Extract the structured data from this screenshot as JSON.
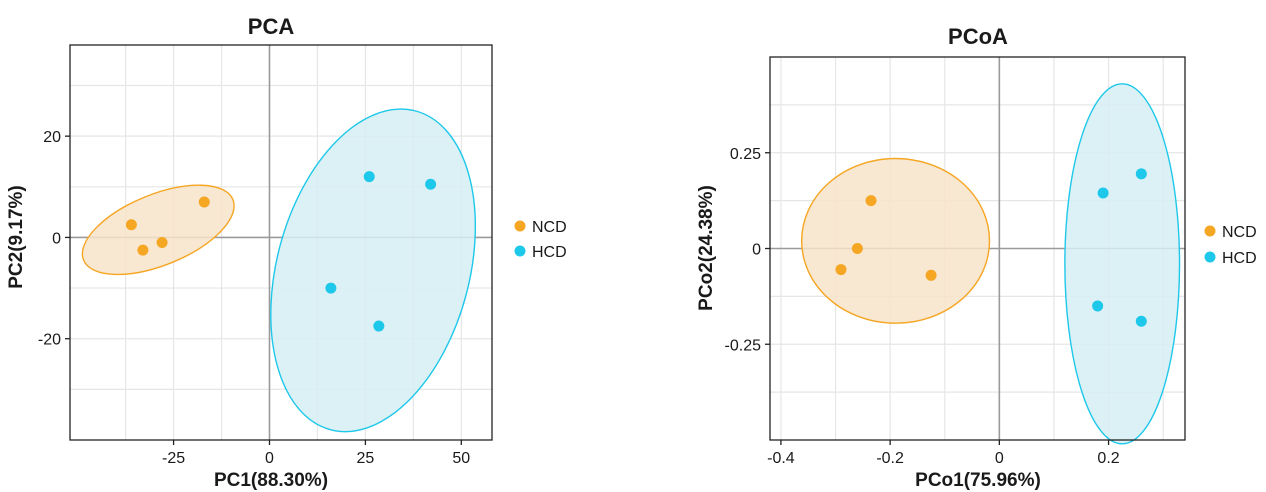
{
  "colors": {
    "NCD": "#f5a623",
    "HCD": "#1ec8ea",
    "NCD_fill": "#f7e3c9",
    "HCD_fill": "#d6eff3",
    "grid": "#e6e6e6",
    "zero_line": "#9a9a9a",
    "frame": "#222222"
  },
  "chart_data": [
    {
      "type": "scatter",
      "title": "PCA",
      "xlabel": "PC1(88.30%)",
      "ylabel": "PC2(9.17%)",
      "xlim": [
        -52,
        58
      ],
      "ylim": [
        -40,
        38
      ],
      "xticks": [
        -25,
        0,
        25,
        50
      ],
      "xtick_labels": [
        "-25",
        "0",
        "25",
        "50"
      ],
      "yticks": [
        -20,
        0,
        20
      ],
      "ytick_labels": [
        "-20",
        "0",
        "20"
      ],
      "x_minor_grid": [
        -37.5,
        -12.5,
        12.5,
        37.5
      ],
      "y_minor_grid": [
        -30,
        -10,
        10,
        30
      ],
      "grid": true,
      "legend": "right",
      "series": [
        {
          "name": "NCD",
          "points": [
            [
              -36,
              2.5
            ],
            [
              -33,
              -2.5
            ],
            [
              -28,
              -1
            ],
            [
              -17,
              7
            ]
          ]
        },
        {
          "name": "HCD",
          "points": [
            [
              26,
              12
            ],
            [
              42,
              10.5
            ],
            [
              16,
              -10
            ],
            [
              28.5,
              -17.5
            ]
          ]
        }
      ],
      "ellipses": [
        {
          "series": "NCD",
          "cx": -29,
          "cy": 1.5,
          "rx": 21,
          "ry": 7,
          "angle_deg": 22
        },
        {
          "series": "HCD",
          "cx": 27,
          "cy": -6.5,
          "rx": 43,
          "ry": 19,
          "angle_deg": 75
        }
      ]
    },
    {
      "type": "scatter",
      "title": "PCoA",
      "xlabel": "PCo1(75.96%)",
      "ylabel": "PCo2(24.38%)",
      "xlim": [
        -0.42,
        0.34
      ],
      "ylim": [
        -0.5,
        0.5
      ],
      "xticks": [
        -0.4,
        -0.2,
        0,
        0.2
      ],
      "xtick_labels": [
        "-0.4",
        "-0.2",
        "0",
        "0.2"
      ],
      "yticks": [
        -0.25,
        0,
        0.25
      ],
      "ytick_labels": [
        "-0.25",
        "0",
        "0.25"
      ],
      "x_minor_grid": [
        -0.3,
        -0.1,
        0.1,
        0.3
      ],
      "y_minor_grid": [
        -0.375,
        -0.125,
        0.125,
        0.375
      ],
      "grid": true,
      "legend": "right",
      "series": [
        {
          "name": "NCD",
          "points": [
            [
              -0.235,
              0.125
            ],
            [
              -0.26,
              0
            ],
            [
              -0.29,
              -0.055
            ],
            [
              -0.125,
              -0.07
            ]
          ]
        },
        {
          "name": "HCD",
          "points": [
            [
              0.19,
              0.145
            ],
            [
              0.26,
              0.195
            ],
            [
              0.18,
              -0.15
            ],
            [
              0.26,
              -0.19
            ]
          ]
        }
      ],
      "ellipses": [
        {
          "series": "NCD",
          "cx": -0.19,
          "cy": 0.02,
          "rx": 0.172,
          "ry": 0.215,
          "angle_deg": 0
        },
        {
          "series": "HCD",
          "cx": 0.225,
          "cy": -0.04,
          "rx": 0.105,
          "ry": 0.47,
          "angle_deg": 0
        }
      ]
    }
  ]
}
